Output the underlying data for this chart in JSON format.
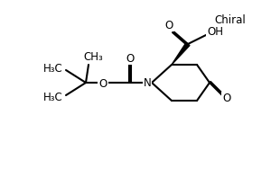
{
  "background_color": "#ffffff",
  "line_color": "#000000",
  "line_width": 1.5,
  "font_size": 8.5,
  "chiral_label": "Chiral",
  "oh_label": "OH",
  "n_label": "N",
  "ch3_label": "CH₃",
  "h3c_label": "H₃C"
}
